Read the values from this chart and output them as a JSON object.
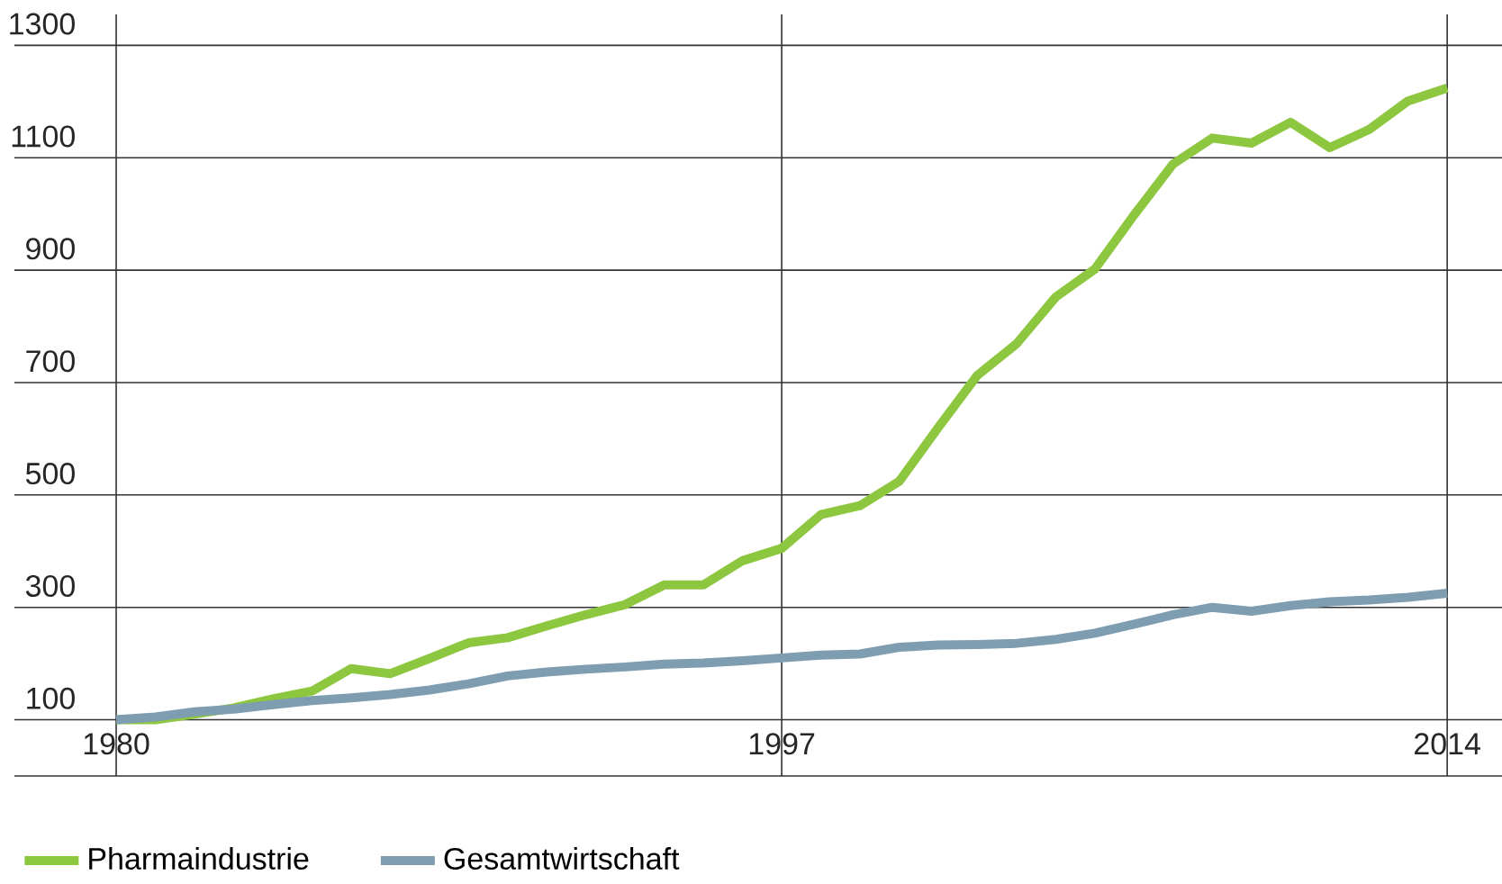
{
  "chart_data": {
    "type": "line",
    "x": [
      1980,
      1981,
      1982,
      1983,
      1984,
      1985,
      1986,
      1987,
      1988,
      1989,
      1990,
      1991,
      1992,
      1993,
      1994,
      1995,
      1996,
      1997,
      1998,
      1999,
      2000,
      2001,
      2002,
      2003,
      2004,
      2005,
      2006,
      2007,
      2008,
      2009,
      2010,
      2011,
      2012,
      2013,
      2014
    ],
    "series": [
      {
        "name": "Pharmaindustrie",
        "color": "#8dc63f",
        "values": [
          100,
          100,
          110,
          121,
          137,
          151,
          191,
          182,
          209,
          237,
          246,
          267,
          287,
          305,
          340,
          340,
          383,
          405,
          465,
          481,
          524,
          620,
          713,
          769,
          852,
          902,
          998,
          1089,
          1135,
          1126,
          1163,
          1118,
          1150,
          1201,
          1224
        ]
      },
      {
        "name": "Gesamtwirtschaft",
        "color": "#7f9db0",
        "values": [
          100,
          105,
          114,
          119,
          127,
          134,
          139,
          145,
          153,
          164,
          178,
          185,
          190,
          194,
          199,
          201,
          205,
          210,
          215,
          217,
          229,
          233,
          234,
          236,
          243,
          254,
          270,
          287,
          300,
          293,
          303,
          310,
          313,
          318,
          325
        ]
      }
    ],
    "xlim": [
      1977.4,
      2015.4
    ],
    "ylim": [
      0,
      1355
    ],
    "xticks": [
      1980,
      1997,
      2014
    ],
    "yticks": [
      {
        "value": 0,
        "label": null
      },
      100,
      300,
      500,
      700,
      900,
      1100,
      1300
    ],
    "grid": true,
    "legend": "bottom left",
    "marker": "none",
    "line_style": "solid"
  }
}
